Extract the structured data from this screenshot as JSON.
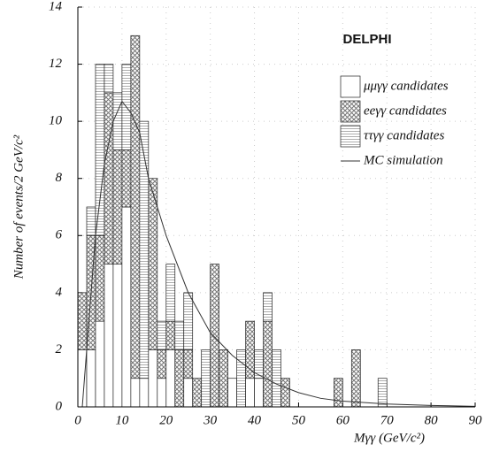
{
  "chart_data": {
    "type": "histogram",
    "title": "DELPHI",
    "x_label": "Mγγ (GeV/c²)",
    "y_label": "Number of events/2 GeV/c²",
    "bins": [
      0,
      2,
      4,
      6,
      8,
      10,
      12,
      14,
      16,
      18,
      20,
      22,
      24,
      26,
      28,
      30,
      32,
      34,
      36,
      38,
      40,
      42,
      44,
      46,
      48,
      50,
      52,
      54,
      56,
      58,
      60,
      62,
      64,
      66,
      68,
      70,
      72,
      74,
      76,
      78,
      80,
      82,
      84,
      86,
      88,
      90
    ],
    "series": [
      {
        "name": "μμγγ candidates",
        "color": "#ffffff",
        "values": [
          2,
          2,
          3,
          5,
          5,
          7,
          1,
          1,
          2,
          1,
          2,
          0,
          1,
          0,
          0,
          0,
          0,
          1,
          0,
          1,
          1,
          0,
          0,
          0,
          0,
          0,
          0,
          0,
          0,
          0,
          0,
          0,
          0,
          0,
          0,
          0,
          0,
          0,
          0,
          0,
          0,
          0,
          0,
          0,
          0
        ]
      },
      {
        "name": "eeγγ candidates",
        "color": "#777777",
        "values": [
          2,
          4,
          3,
          6,
          4,
          2,
          12,
          0,
          6,
          1,
          1,
          2,
          1,
          1,
          0,
          5,
          2,
          0,
          0,
          2,
          0,
          3,
          0,
          1,
          0,
          0,
          0,
          0,
          0,
          1,
          0,
          2,
          0,
          0,
          0,
          0,
          0,
          0,
          0,
          0,
          0,
          0,
          0,
          0,
          0
        ]
      },
      {
        "name": "ττγγ candidates",
        "color": "#999999",
        "values": [
          0,
          1,
          6,
          1,
          2,
          3,
          0,
          9,
          0,
          1,
          2,
          1,
          2,
          0,
          2,
          0,
          0,
          0,
          2,
          0,
          1,
          1,
          2,
          0,
          0,
          0,
          0,
          0,
          0,
          0,
          0,
          0,
          0,
          0,
          1,
          0,
          0,
          0,
          0,
          0,
          0,
          0,
          0,
          0,
          0
        ]
      },
      {
        "name": "MC simulation",
        "type": "line",
        "color": "#333333",
        "x": [
          1,
          2,
          4,
          6,
          8,
          10,
          12,
          14,
          16,
          18,
          20,
          25,
          30,
          35,
          40,
          45,
          50,
          55,
          60,
          70,
          80,
          90
        ],
        "values": [
          0,
          2,
          6,
          8.5,
          10,
          10.7,
          10.3,
          9.6,
          8,
          7,
          6,
          4,
          2.6,
          1.8,
          1.2,
          0.8,
          0.5,
          0.3,
          0.2,
          0.1,
          0.05,
          0.02
        ]
      }
    ],
    "xlim": [
      0,
      90
    ],
    "xticks": [
      0,
      10,
      20,
      30,
      40,
      50,
      60,
      70,
      80,
      90
    ],
    "ylim": [
      0,
      14
    ],
    "yticks": [
      0,
      2,
      4,
      6,
      8,
      10,
      12,
      14
    ],
    "grid": true,
    "legend": "upper right"
  }
}
